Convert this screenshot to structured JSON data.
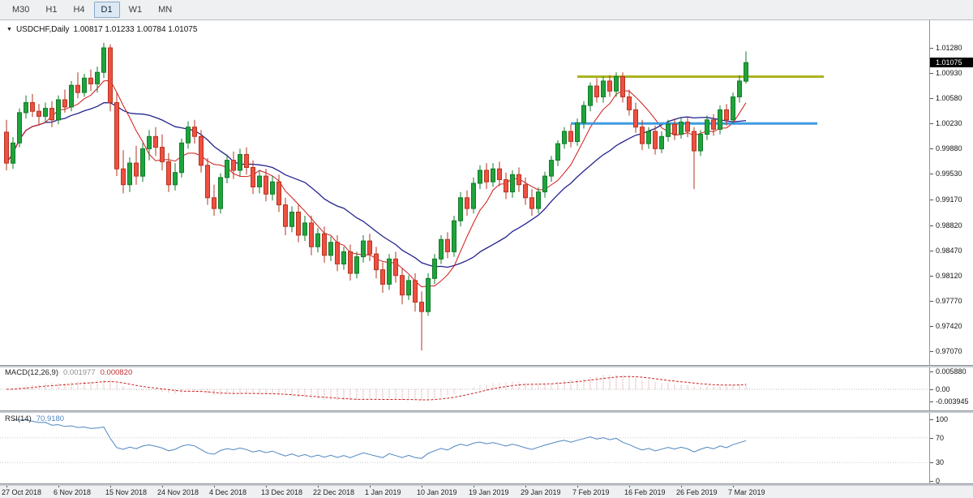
{
  "icons": {
    "chart_marker": "▼"
  },
  "toolbar": {
    "timeframes": [
      {
        "label": "M30",
        "active": false
      },
      {
        "label": "H1",
        "active": false
      },
      {
        "label": "H4",
        "active": false
      },
      {
        "label": "D1",
        "active": true
      },
      {
        "label": "W1",
        "active": false
      },
      {
        "label": "MN",
        "active": false
      }
    ]
  },
  "chart": {
    "title": "USDCHF,Daily",
    "ohlc_text": "1.00817 1.01233 1.00784 1.01075",
    "current_price": "1.01075",
    "price_axis_labels": [
      "1.01280",
      "1.00930",
      "1.00580",
      "1.00230",
      "0.99880",
      "0.99530",
      "0.99170",
      "0.98820",
      "0.98470",
      "0.98120",
      "0.97770",
      "0.97420",
      "0.97070"
    ]
  },
  "macd": {
    "label": "MACD(12,26,9)",
    "value_main": "0.001977",
    "value_signal": "0.000820",
    "axis_labels": [
      "0.005880",
      "0.00",
      "-0.003945"
    ]
  },
  "rsi": {
    "label": "RSI(14)",
    "value": "70.9180",
    "axis_labels": [
      "100",
      "70",
      "30",
      "0"
    ],
    "levels": [
      70,
      30
    ]
  },
  "colors": {
    "candle_up": "#1fa43c",
    "candle_up_border": "#127a28",
    "candle_down": "#ef5042",
    "candle_down_border": "#b5331f",
    "macd_histogram": "#d89696",
    "macd_signal": "#cc2020",
    "rsi_line": "#4f86c0",
    "axis_line": "#8e9499"
  },
  "chart_data": {
    "type": "candlestick",
    "title": "USDCHF Daily",
    "symbol": "USDCHF",
    "timeframe": "Daily",
    "last_ohlc": {
      "open": 1.00817,
      "high": 1.01233,
      "low": 1.00784,
      "close": 1.01075
    },
    "ylim": [
      0.9707,
      1.0135
    ],
    "x_tick_labels": [
      "27 Oct 2018",
      "6 Nov 2018",
      "15 Nov 2018",
      "24 Nov 2018",
      "4 Dec 2018",
      "13 Dec 2018",
      "22 Dec 2018",
      "1 Jan 2019",
      "10 Jan 2019",
      "19 Jan 2019",
      "29 Jan 2019",
      "7 Feb 2019",
      "16 Feb 2019",
      "26 Feb 2019",
      "7 Mar 2019"
    ],
    "tick_every": 8,
    "overlays": {
      "ma_fast": {
        "type": "sma",
        "period": 7,
        "color": "#d01818"
      },
      "ma_slow": {
        "type": "sma",
        "period": 20,
        "color": "#23238f"
      }
    },
    "hlines": [
      {
        "name": "resistance",
        "price": 1.0088,
        "color": "#abb320",
        "idx_from": 88,
        "idx_to": 126
      },
      {
        "name": "support",
        "price": 1.0023,
        "color": "#3d9be0",
        "idx_from": 87,
        "idx_to": 125
      }
    ],
    "macd_panel": {
      "range": [
        -0.003945,
        0.00588
      ],
      "main": 0.001977,
      "signal": 0.00082
    },
    "rsi_panel": {
      "range": [
        0,
        100
      ],
      "last": 70.918
    },
    "candles": [
      [
        1.0011,
        1.0028,
        0.9958,
        0.9968
      ],
      [
        0.9968,
        1.0004,
        0.996,
        0.9996
      ],
      [
        0.9996,
        1.0044,
        0.999,
        1.0038
      ],
      [
        1.0038,
        1.0062,
        1.003,
        1.0052
      ],
      [
        1.0052,
        1.0064,
        1.0032,
        1.004
      ],
      [
        1.004,
        1.005,
        1.0022,
        1.0033
      ],
      [
        1.0033,
        1.0052,
        1.0024,
        1.0044
      ],
      [
        1.0044,
        1.0054,
        1.0018,
        1.0028
      ],
      [
        1.0028,
        1.0062,
        1.0022,
        1.0056
      ],
      [
        1.0056,
        1.007,
        1.0038,
        1.0046
      ],
      [
        1.0046,
        1.0082,
        1.004,
        1.0076
      ],
      [
        1.0076,
        1.0094,
        1.0058,
        1.0066
      ],
      [
        1.0066,
        1.0092,
        1.006,
        1.0086
      ],
      [
        1.0086,
        1.0098,
        1.0068,
        1.0078
      ],
      [
        1.0078,
        1.0102,
        1.0066,
        1.0094
      ],
      [
        1.0094,
        1.0135,
        1.0086,
        1.0128
      ],
      [
        1.0128,
        1.0133,
        1.004,
        1.0052
      ],
      [
        1.0052,
        1.0066,
        0.995,
        0.996
      ],
      [
        0.996,
        0.9986,
        0.9926,
        0.9938
      ],
      [
        0.9938,
        0.9976,
        0.9928,
        0.9968
      ],
      [
        0.9968,
        0.9992,
        0.9938,
        0.995
      ],
      [
        0.995,
        0.9996,
        0.9942,
        0.9988
      ],
      [
        0.9988,
        1.0014,
        0.9972,
        1.0005
      ],
      [
        1.0005,
        1.0018,
        0.9978,
        0.999
      ],
      [
        0.999,
        1.0008,
        0.9958,
        0.997
      ],
      [
        0.997,
        0.9982,
        0.9928,
        0.9938
      ],
      [
        0.9938,
        0.9968,
        0.993,
        0.9955
      ],
      [
        0.9955,
        1.0002,
        0.9948,
        0.9996
      ],
      [
        0.9996,
        1.0026,
        0.9988,
        1.0018
      ],
      [
        1.0018,
        1.0028,
        0.9995,
        1.0005
      ],
      [
        1.0005,
        1.0014,
        0.9955,
        0.9965
      ],
      [
        0.9965,
        0.9975,
        0.991,
        0.992
      ],
      [
        0.992,
        0.9938,
        0.9895,
        0.9905
      ],
      [
        0.9905,
        0.9954,
        0.9898,
        0.9948
      ],
      [
        0.9948,
        0.998,
        0.994,
        0.9972
      ],
      [
        0.9972,
        0.9984,
        0.9946,
        0.9958
      ],
      [
        0.9958,
        0.9988,
        0.995,
        0.998
      ],
      [
        0.998,
        0.999,
        0.9952,
        0.9962
      ],
      [
        0.9962,
        0.9972,
        0.9925,
        0.9935
      ],
      [
        0.9935,
        0.9958,
        0.9926,
        0.995
      ],
      [
        0.995,
        0.996,
        0.9915,
        0.9925
      ],
      [
        0.9925,
        0.995,
        0.9916,
        0.9942
      ],
      [
        0.9942,
        0.9952,
        0.99,
        0.991
      ],
      [
        0.991,
        0.992,
        0.9868,
        0.988
      ],
      [
        0.988,
        0.9908,
        0.9872,
        0.99
      ],
      [
        0.99,
        0.991,
        0.9858,
        0.9868
      ],
      [
        0.9868,
        0.9895,
        0.986,
        0.9885
      ],
      [
        0.9885,
        0.9895,
        0.984,
        0.9852
      ],
      [
        0.9852,
        0.9878,
        0.9844,
        0.987
      ],
      [
        0.987,
        0.988,
        0.983,
        0.984
      ],
      [
        0.984,
        0.9866,
        0.9832,
        0.9858
      ],
      [
        0.9858,
        0.9868,
        0.9818,
        0.9828
      ],
      [
        0.9828,
        0.9852,
        0.982,
        0.9845
      ],
      [
        0.9845,
        0.9855,
        0.9805,
        0.9815
      ],
      [
        0.9815,
        0.9845,
        0.9808,
        0.9838
      ],
      [
        0.9838,
        0.9868,
        0.983,
        0.986
      ],
      [
        0.986,
        0.987,
        0.9832,
        0.9842
      ],
      [
        0.9842,
        0.9852,
        0.9808,
        0.982
      ],
      [
        0.982,
        0.983,
        0.9788,
        0.98
      ],
      [
        0.98,
        0.9842,
        0.9792,
        0.9835
      ],
      [
        0.9835,
        0.9845,
        0.9802,
        0.9812
      ],
      [
        0.9812,
        0.9822,
        0.9772,
        0.9785
      ],
      [
        0.9785,
        0.9812,
        0.9778,
        0.9805
      ],
      [
        0.9805,
        0.9815,
        0.9762,
        0.9775
      ],
      [
        0.9775,
        0.979,
        0.9708,
        0.9762
      ],
      [
        0.9762,
        0.9815,
        0.9756,
        0.9808
      ],
      [
        0.9808,
        0.9842,
        0.98,
        0.9835
      ],
      [
        0.9835,
        0.9868,
        0.9828,
        0.9862
      ],
      [
        0.9862,
        0.9872,
        0.9836,
        0.9845
      ],
      [
        0.9845,
        0.9895,
        0.9838,
        0.9888
      ],
      [
        0.9888,
        0.9928,
        0.988,
        0.992
      ],
      [
        0.992,
        0.993,
        0.9895,
        0.9905
      ],
      [
        0.9905,
        0.9948,
        0.9898,
        0.994
      ],
      [
        0.994,
        0.9965,
        0.9932,
        0.9958
      ],
      [
        0.9958,
        0.9968,
        0.9932,
        0.9942
      ],
      [
        0.9942,
        0.9968,
        0.9935,
        0.996
      ],
      [
        0.996,
        0.997,
        0.9936,
        0.9945
      ],
      [
        0.9945,
        0.9955,
        0.9918,
        0.9928
      ],
      [
        0.9928,
        0.9958,
        0.992,
        0.9952
      ],
      [
        0.9952,
        0.9962,
        0.9928,
        0.9938
      ],
      [
        0.9938,
        0.9948,
        0.991,
        0.992
      ],
      [
        0.992,
        0.9932,
        0.9895,
        0.9905
      ],
      [
        0.9905,
        0.9934,
        0.9898,
        0.9928
      ],
      [
        0.9928,
        0.9956,
        0.992,
        0.995
      ],
      [
        0.995,
        0.9978,
        0.9942,
        0.9972
      ],
      [
        0.9972,
        1.0,
        0.9964,
        0.9995
      ],
      [
        0.9995,
        1.0018,
        0.9988,
        1.0012
      ],
      [
        1.0012,
        1.0022,
        0.999,
        0.9998
      ],
      [
        0.9998,
        1.003,
        0.9992,
        1.0024
      ],
      [
        1.0024,
        1.0054,
        1.0016,
        1.0048
      ],
      [
        1.0048,
        1.008,
        1.004,
        1.0075
      ],
      [
        1.0075,
        1.0086,
        1.0052,
        1.006
      ],
      [
        1.006,
        1.0088,
        1.0052,
        1.0082
      ],
      [
        1.0082,
        1.009,
        1.006,
        1.0068
      ],
      [
        1.0068,
        1.0094,
        1.006,
        1.0088
      ],
      [
        1.0088,
        1.0094,
        1.0052,
        1.006
      ],
      [
        1.006,
        1.007,
        1.0034,
        1.0042
      ],
      [
        1.0042,
        1.0052,
        1.001,
        1.0018
      ],
      [
        1.0018,
        1.0028,
        0.9986,
        0.9995
      ],
      [
        0.9995,
        1.0018,
        0.9988,
        1.0012
      ],
      [
        1.0012,
        1.002,
        0.998,
        0.9988
      ],
      [
        0.9988,
        1.0012,
        0.9982,
        1.0005
      ],
      [
        1.0005,
        1.0028,
        0.9998,
        1.0022
      ],
      [
        1.0022,
        1.003,
        1.0,
        1.0008
      ],
      [
        1.0008,
        1.0032,
        1.0002,
        1.0025
      ],
      [
        1.0025,
        1.0032,
        1.0004,
        1.0012
      ],
      [
        1.0012,
        1.0018,
        0.9932,
        0.9985
      ],
      [
        0.9985,
        1.0014,
        0.9978,
        1.0008
      ],
      [
        1.0008,
        1.0034,
        1.0,
        1.0028
      ],
      [
        1.0028,
        1.0036,
        1.0006,
        1.0015
      ],
      [
        1.0015,
        1.0048,
        1.0008,
        1.0042
      ],
      [
        1.0042,
        1.005,
        1.002,
        1.0028
      ],
      [
        1.0028,
        1.0066,
        1.0022,
        1.006
      ],
      [
        1.006,
        1.009,
        1.0052,
        1.0082
      ],
      [
        1.00817,
        1.01233,
        1.00784,
        1.01075
      ]
    ]
  }
}
